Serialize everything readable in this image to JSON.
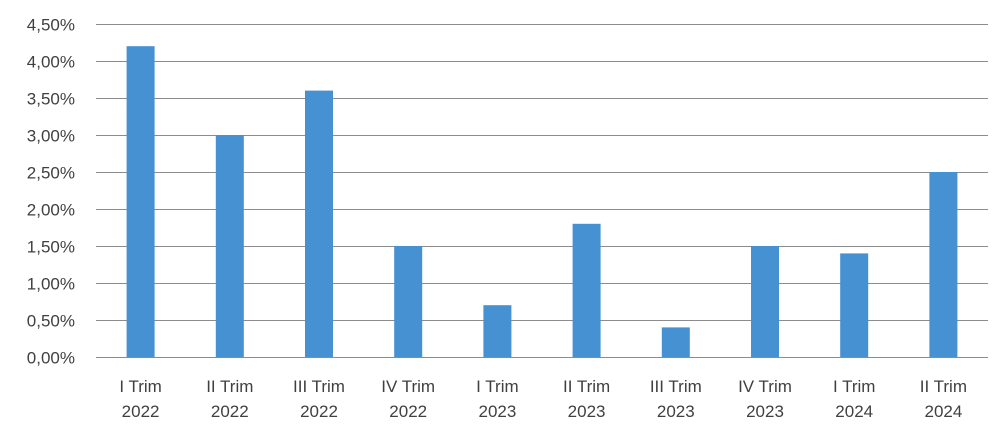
{
  "chart_data": {
    "type": "bar",
    "categories": [
      [
        "I Trim",
        "2022"
      ],
      [
        "II Trim",
        "2022"
      ],
      [
        "III Trim",
        "2022"
      ],
      [
        "IV Trim",
        "2022"
      ],
      [
        "I Trim",
        "2023"
      ],
      [
        "II Trim",
        "2023"
      ],
      [
        "III Trim",
        "2023"
      ],
      [
        "IV Trim",
        "2023"
      ],
      [
        "I Trim",
        "2024"
      ],
      [
        "II Trim",
        "2024"
      ]
    ],
    "values": [
      4.2,
      3.0,
      3.6,
      1.5,
      0.7,
      1.8,
      0.4,
      1.5,
      1.4,
      2.5
    ],
    "ylim": [
      0,
      4.5
    ],
    "yticks": [
      0,
      0.5,
      1.0,
      1.5,
      2.0,
      2.5,
      3.0,
      3.5,
      4.0,
      4.5
    ],
    "ytick_labels": [
      "0,00%",
      "0,50%",
      "1,00%",
      "1,50%",
      "2,00%",
      "2,50%",
      "3,00%",
      "3,50%",
      "4,00%",
      "4,50%"
    ],
    "grid": true,
    "bar_color": "#4591d2",
    "title": "",
    "xlabel": "",
    "ylabel": ""
  }
}
